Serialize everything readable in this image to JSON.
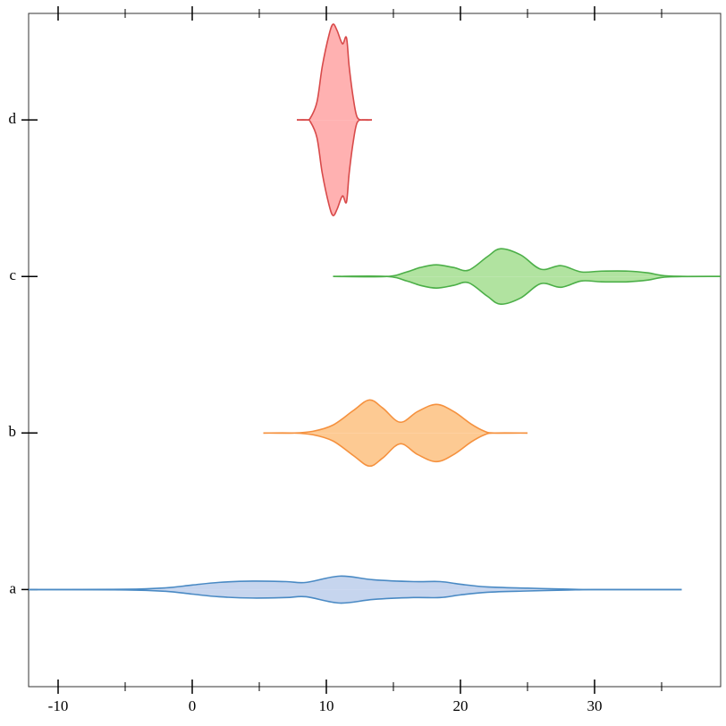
{
  "chart_data": {
    "type": "violin",
    "categories": [
      "a",
      "b",
      "c",
      "d"
    ],
    "xlim": [
      -12.2,
      39.4
    ],
    "xticks": [
      -10,
      0,
      10,
      20,
      30
    ],
    "xminorticks": [
      -5,
      5,
      15,
      25,
      35
    ],
    "ylim": [
      -0.62,
      3.68
    ],
    "series": [
      {
        "color": "#4a8ac4",
        "fill": "#c6d5ee",
        "x": [
          -12.2,
          -5,
          -2,
          0,
          2,
          4.5,
          7,
          8.5,
          11,
          13.5,
          16.5,
          18.5,
          20,
          22,
          25,
          28,
          30,
          36.5
        ],
        "values": [
          0,
          0.002,
          0.011,
          0.029,
          0.046,
          0.054,
          0.051,
          0.046,
          0.086,
          0.063,
          0.051,
          0.051,
          0.034,
          0.017,
          0.009,
          0.003,
          0,
          0
        ]
      },
      {
        "color": "#f5913e",
        "fill": "#fdca93",
        "x": [
          5.3,
          7.5,
          9,
          10.5,
          12,
          13.2,
          14.2,
          15.5,
          16.8,
          18.2,
          19.5,
          20.8,
          21.8,
          22.5,
          25
        ],
        "values": [
          0,
          0,
          0.011,
          0.051,
          0.143,
          0.211,
          0.16,
          0.069,
          0.137,
          0.183,
          0.137,
          0.057,
          0.011,
          0,
          0
        ]
      },
      {
        "color": "#4caf48",
        "fill": "#b1e3a0",
        "x": [
          10.5,
          14.5,
          16,
          17,
          18.2,
          19.5,
          20.6,
          22,
          23,
          24.5,
          26,
          27.5,
          29,
          30.5,
          32.5,
          34,
          35.5,
          39.4
        ],
        "values": [
          0,
          0,
          0.029,
          0.057,
          0.074,
          0.057,
          0.04,
          0.126,
          0.177,
          0.137,
          0.046,
          0.069,
          0.029,
          0.034,
          0.034,
          0.023,
          0.003,
          0
        ]
      },
      {
        "color": "#d84a4a",
        "fill": "#ffb1b1",
        "x": [
          7.8,
          8.5,
          8.8,
          9.3,
          9.7,
          10.2,
          10.5,
          10.8,
          11.2,
          11.5,
          11.7,
          12,
          12.3,
          12.8,
          13.4
        ],
        "values": [
          0,
          0,
          0.011,
          0.114,
          0.343,
          0.543,
          0.611,
          0.571,
          0.486,
          0.526,
          0.343,
          0.143,
          0.017,
          0,
          0
        ]
      }
    ]
  }
}
